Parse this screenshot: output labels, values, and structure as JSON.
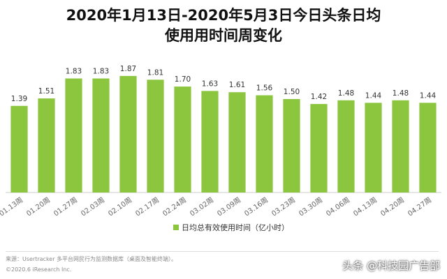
{
  "header": {
    "title_line1": "2020年1月13日-2020年5月3日今日头条日均",
    "title_line2": "使用用时间周变化"
  },
  "chart_data": {
    "type": "bar",
    "categories": [
      "01.13周",
      "01.20周",
      "01.27周",
      "02.03周",
      "02.10周",
      "02.17周",
      "02.24周",
      "03.02周",
      "03.09周",
      "03.16周",
      "03.23周",
      "03.30周",
      "04.06周",
      "04.13周",
      "04.20周",
      "04.27周"
    ],
    "series": [
      {
        "name": "日均总有效使用时间（亿小时）",
        "values": [
          1.39,
          1.51,
          1.83,
          1.83,
          1.87,
          1.81,
          1.7,
          1.63,
          1.61,
          1.56,
          1.5,
          1.42,
          1.48,
          1.44,
          1.48,
          1.44
        ]
      }
    ],
    "ylim": [
      0,
      1.97
    ],
    "grid": false,
    "legend_position": "bottom",
    "colors": {
      "bar": "#8cc63f"
    }
  },
  "footer": {
    "source": "来源：Usertracker 多平台网民行为监测数据库（桌面及智能终端）。",
    "copyright": "©2020.6 iResearch Inc.",
    "watermark": "头条 @科技园广告部"
  }
}
